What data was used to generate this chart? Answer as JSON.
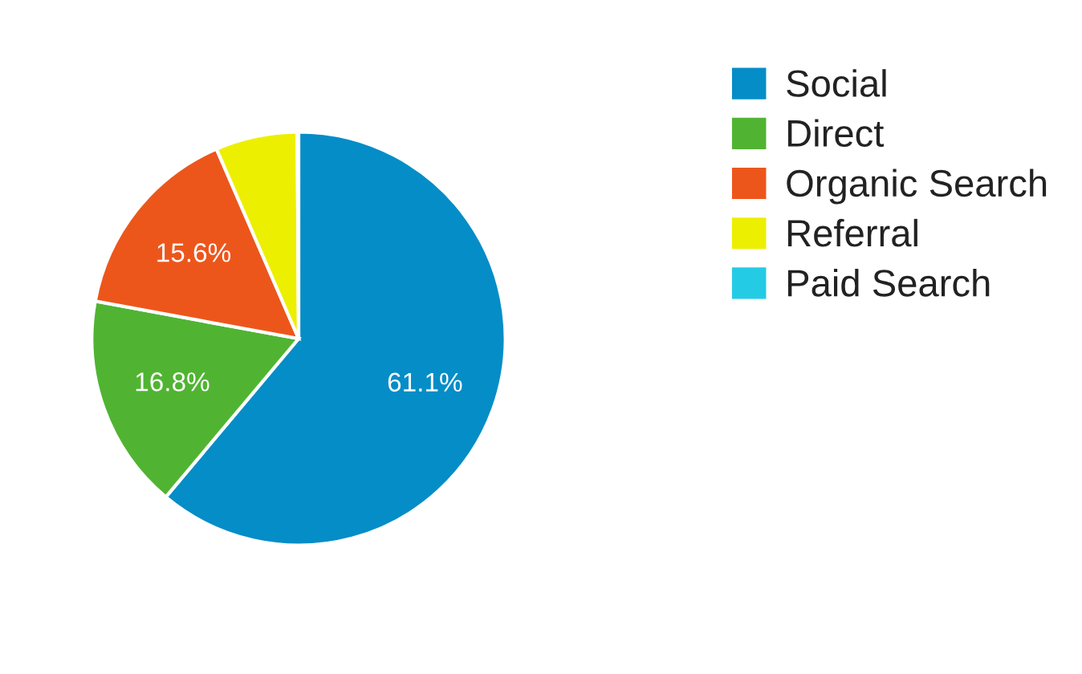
{
  "chart_data": {
    "type": "pie",
    "categories": [
      "Social",
      "Direct",
      "Organic Search",
      "Referral",
      "Paid Search"
    ],
    "values": [
      61.1,
      16.8,
      15.6,
      6.4,
      0.1
    ],
    "colors": [
      "#058dc7",
      "#50b432",
      "#ed561b",
      "#edef00",
      "#24cbe5"
    ],
    "value_labels": [
      "61.1%",
      "16.8%",
      "15.6%",
      null,
      null
    ],
    "legend": "right"
  }
}
